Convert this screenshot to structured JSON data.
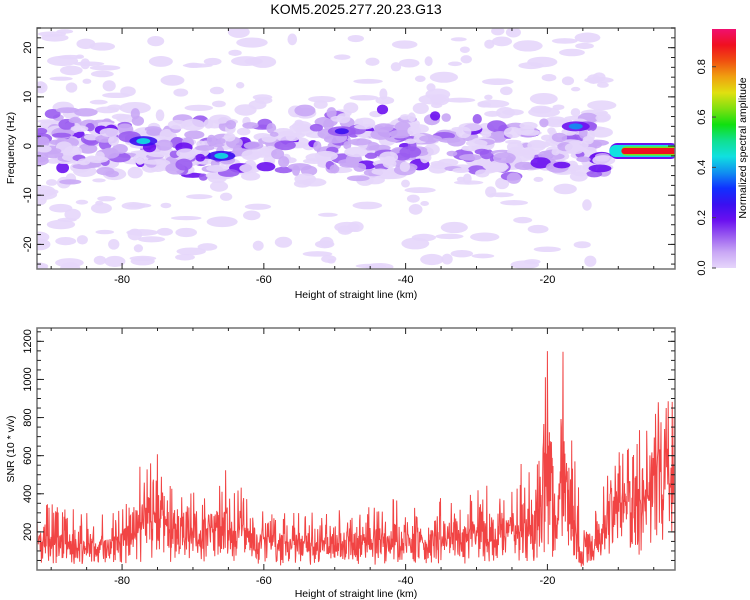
{
  "title": "KOM5.2025.277.20.23.G13",
  "chart_data": [
    {
      "type": "heatmap",
      "panel": "top",
      "xlabel": "Height of straight line (km)",
      "ylabel": "Frequency (Hz)",
      "xlim": [
        -92,
        -2
      ],
      "ylim": [
        -25,
        24
      ],
      "xticks": [
        -80,
        -60,
        -40,
        -20
      ],
      "yticks": [
        -20,
        -10,
        0,
        10,
        20
      ],
      "colorbar": {
        "label": "Normalized spectral amplitude",
        "range": [
          0,
          0.95
        ],
        "ticks": [
          0.0,
          0.2,
          0.4,
          0.6,
          0.8
        ],
        "colors": [
          "#ffffff",
          "#e6d6fb",
          "#c9a7f5",
          "#9a5cf0",
          "#6a10f0",
          "#3a10f0",
          "#1030ff",
          "#1090f0",
          "#10e0e0",
          "#10e090",
          "#10e010",
          "#80e010",
          "#e0e010",
          "#f0a010",
          "#f05010",
          "#f01020",
          "#f01070"
        ]
      },
      "features": [
        {
          "name": "main-band",
          "x_range": [
            -92,
            -12
          ],
          "freq_center": 0,
          "freq_halfwidth": 5,
          "peak_amplitude": 0.35
        },
        {
          "name": "hot-spot",
          "x": -77,
          "freq": 1,
          "amplitude": 0.45
        },
        {
          "name": "hot-spot",
          "x": -66,
          "freq": -2,
          "amplitude": 0.45
        },
        {
          "name": "hot-spot",
          "x": -49,
          "freq": 3,
          "amplitude": 0.3
        },
        {
          "name": "hot-spot",
          "x": -16,
          "freq": 4,
          "amplitude": 0.4
        },
        {
          "name": "tonal-line",
          "x_range": [
            -9,
            -2
          ],
          "freq": -1,
          "amplitude": 0.9
        }
      ]
    },
    {
      "type": "line",
      "panel": "bottom",
      "xlabel": "Height of straight line (km)",
      "ylabel": "SNR (10 * v/v)",
      "xlim": [
        -92,
        -2
      ],
      "ylim": [
        0,
        1270
      ],
      "xticks": [
        -80,
        -60,
        -40,
        -20
      ],
      "yticks": [
        200,
        400,
        600,
        800,
        1000,
        1200
      ],
      "color": "#f03030",
      "series": [
        {
          "name": "SNR",
          "x": [
            -92,
            -88,
            -84,
            -80,
            -77,
            -76,
            -72,
            -68,
            -65,
            -62,
            -58,
            -54,
            -50,
            -46,
            -42,
            -38,
            -34,
            -30,
            -26,
            -24,
            -22,
            -20,
            -19,
            -18,
            -17.5,
            -17,
            -16,
            -14,
            -12,
            -10,
            -8,
            -6,
            -4,
            -2
          ],
          "envelope_max": [
            380,
            320,
            330,
            350,
            600,
            740,
            420,
            440,
            580,
            380,
            300,
            300,
            320,
            330,
            380,
            330,
            400,
            430,
            500,
            600,
            560,
            1200,
            900,
            1250,
            1270,
            1150,
            500,
            250,
            450,
            700,
            750,
            800,
            900,
            880
          ],
          "baseline": [
            170,
            150,
            150,
            170,
            280,
            300,
            230,
            230,
            250,
            180,
            160,
            150,
            160,
            170,
            180,
            180,
            190,
            200,
            220,
            250,
            260,
            330,
            330,
            400,
            400,
            350,
            120,
            110,
            300,
            450,
            500,
            560,
            620,
            680
          ]
        }
      ]
    }
  ]
}
